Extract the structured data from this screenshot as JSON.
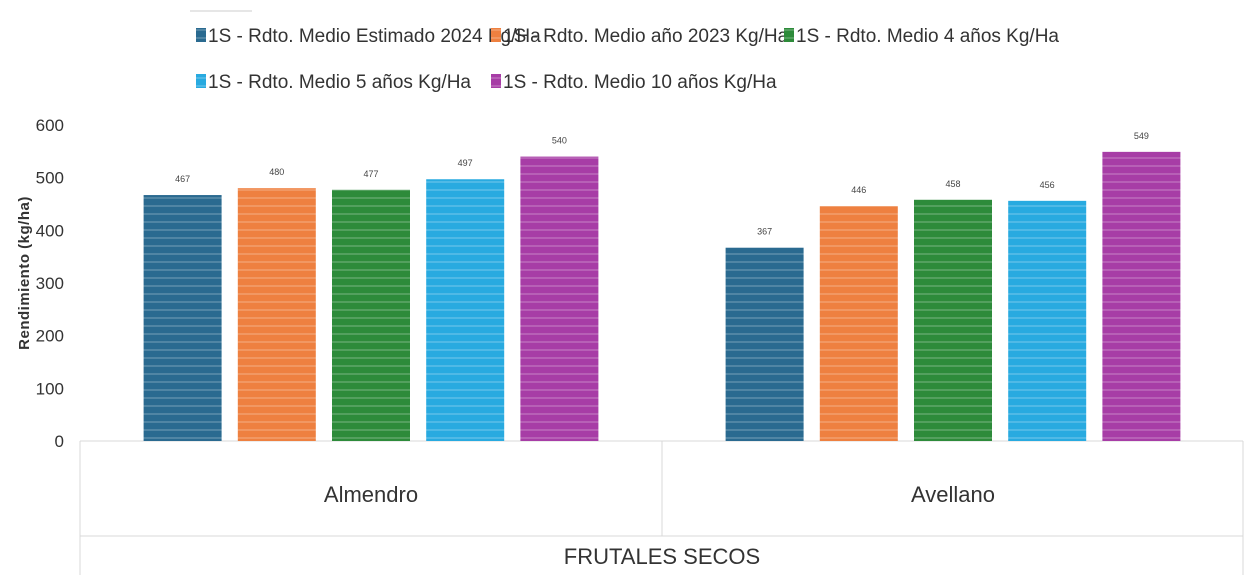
{
  "chart_data": {
    "type": "bar",
    "group_label": "FRUTALES SECOS",
    "categories": [
      "Almendro",
      "Avellano"
    ],
    "series": [
      {
        "name": "1S - Rdto. Medio Estimado 2024 Kg/Ha",
        "color": "#2a6a90",
        "values": [
          467,
          367
        ]
      },
      {
        "name": "1S - Rdto. Medio año 2023 Kg/Ha",
        "color": "#ee8040",
        "values": [
          480,
          446
        ]
      },
      {
        "name": "1S - Rdto. Medio 4 años Kg/Ha",
        "color": "#2d8b3a",
        "values": [
          477,
          458
        ]
      },
      {
        "name": "1S - Rdto. Medio 5 años Kg/Ha",
        "color": "#28aae0",
        "values": [
          497,
          456
        ]
      },
      {
        "name": "1S - Rdto. Medio 10 años Kg/Ha",
        "color": "#a73da6",
        "values": [
          540,
          549
        ]
      }
    ],
    "ylabel": "Rendimiento (kg/ha)",
    "xlabel": "",
    "ylim": [
      0,
      600
    ],
    "yticks": [
      0,
      100,
      200,
      300,
      400,
      500,
      600
    ],
    "grid": false,
    "legend": "top",
    "bar_fill": "horizontal-stripes"
  }
}
